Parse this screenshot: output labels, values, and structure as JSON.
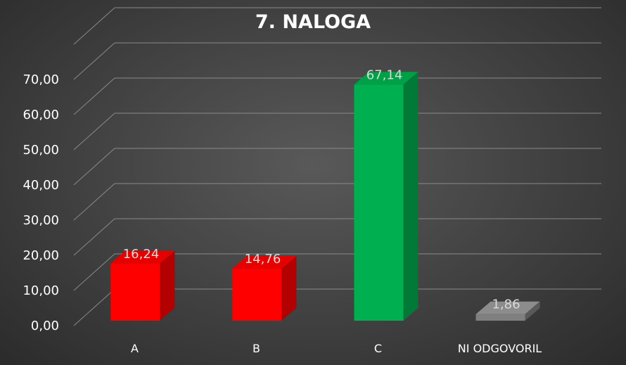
{
  "chart_data": {
    "type": "bar",
    "title": "7. NALOGA",
    "categories": [
      "A",
      "B",
      "C",
      "NI ODGOVORIL"
    ],
    "values": [
      16.24,
      14.76,
      67.14,
      1.86
    ],
    "value_labels": [
      "16,24",
      "14,76",
      "67,14",
      "1,86"
    ],
    "y_ticks": [
      "0,00",
      "10,00",
      "20,00",
      "30,00",
      "40,00",
      "50,00",
      "60,00",
      "70,00"
    ],
    "ylim": [
      0,
      80
    ],
    "grid": true,
    "legend": "none",
    "style": "3d-column",
    "bar_colors": [
      "#ff0000",
      "#ff0000",
      "#00b050",
      "#7f7f7f"
    ],
    "bar_side_colors": [
      "#b30000",
      "#b30000",
      "#007a36",
      "#595959"
    ],
    "bar_top_colors": [
      "#e60000",
      "#e60000",
      "#00a046",
      "#8c8c8c"
    ]
  }
}
